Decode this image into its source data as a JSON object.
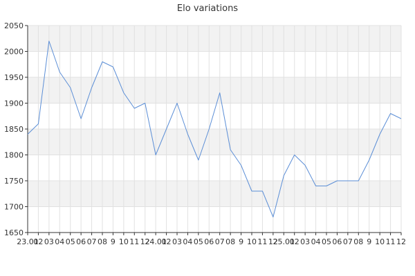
{
  "chart_data": {
    "type": "line",
    "title": "Elo variations",
    "xlabel": "",
    "ylabel": "",
    "ylim": [
      1650,
      2050
    ],
    "yticks": [
      1650,
      1700,
      1750,
      1800,
      1850,
      1900,
      1950,
      2000,
      2050
    ],
    "grid": true,
    "legend": "none",
    "colors": {
      "line": "#5b8ed6",
      "band": "#f2f2f2",
      "grid": "#e1e1e1",
      "axis": "#333333"
    },
    "x": [
      "23.01",
      "02",
      "03",
      "04",
      "05",
      "06",
      "07",
      "08",
      "09",
      "10",
      "11",
      "12",
      "24.01",
      "02",
      "03",
      "04",
      "05",
      "06",
      "07",
      "08",
      "09",
      "10",
      "11",
      "12",
      "25.01",
      "02",
      "03",
      "04",
      "05",
      "06",
      "07",
      "08",
      "09",
      "10",
      "11",
      "12"
    ],
    "x_tick_labels": [
      "23.01",
      "02",
      "03",
      "04",
      "05",
      "06",
      "07",
      "08",
      "9",
      "10",
      "11",
      "12",
      "24.01",
      "02",
      "03",
      "04",
      "05",
      "06",
      "07",
      "08",
      "9",
      "10",
      "11",
      "12",
      "25.01",
      "02",
      "03",
      "04",
      "05",
      "06",
      "07",
      "08",
      "9",
      "10",
      "11",
      "12"
    ],
    "series": [
      {
        "values": [
          1840,
          1860,
          2020,
          1960,
          1930,
          1870,
          1930,
          1980,
          1970,
          1920,
          1890,
          1900,
          1800,
          1850,
          1900,
          1840,
          1790,
          1850,
          1920,
          1810,
          1780,
          1730,
          1730,
          1680,
          1760,
          1800,
          1780,
          1740,
          1740,
          1750,
          1750,
          1750,
          1790,
          1840,
          1880,
          1870
        ]
      }
    ]
  }
}
